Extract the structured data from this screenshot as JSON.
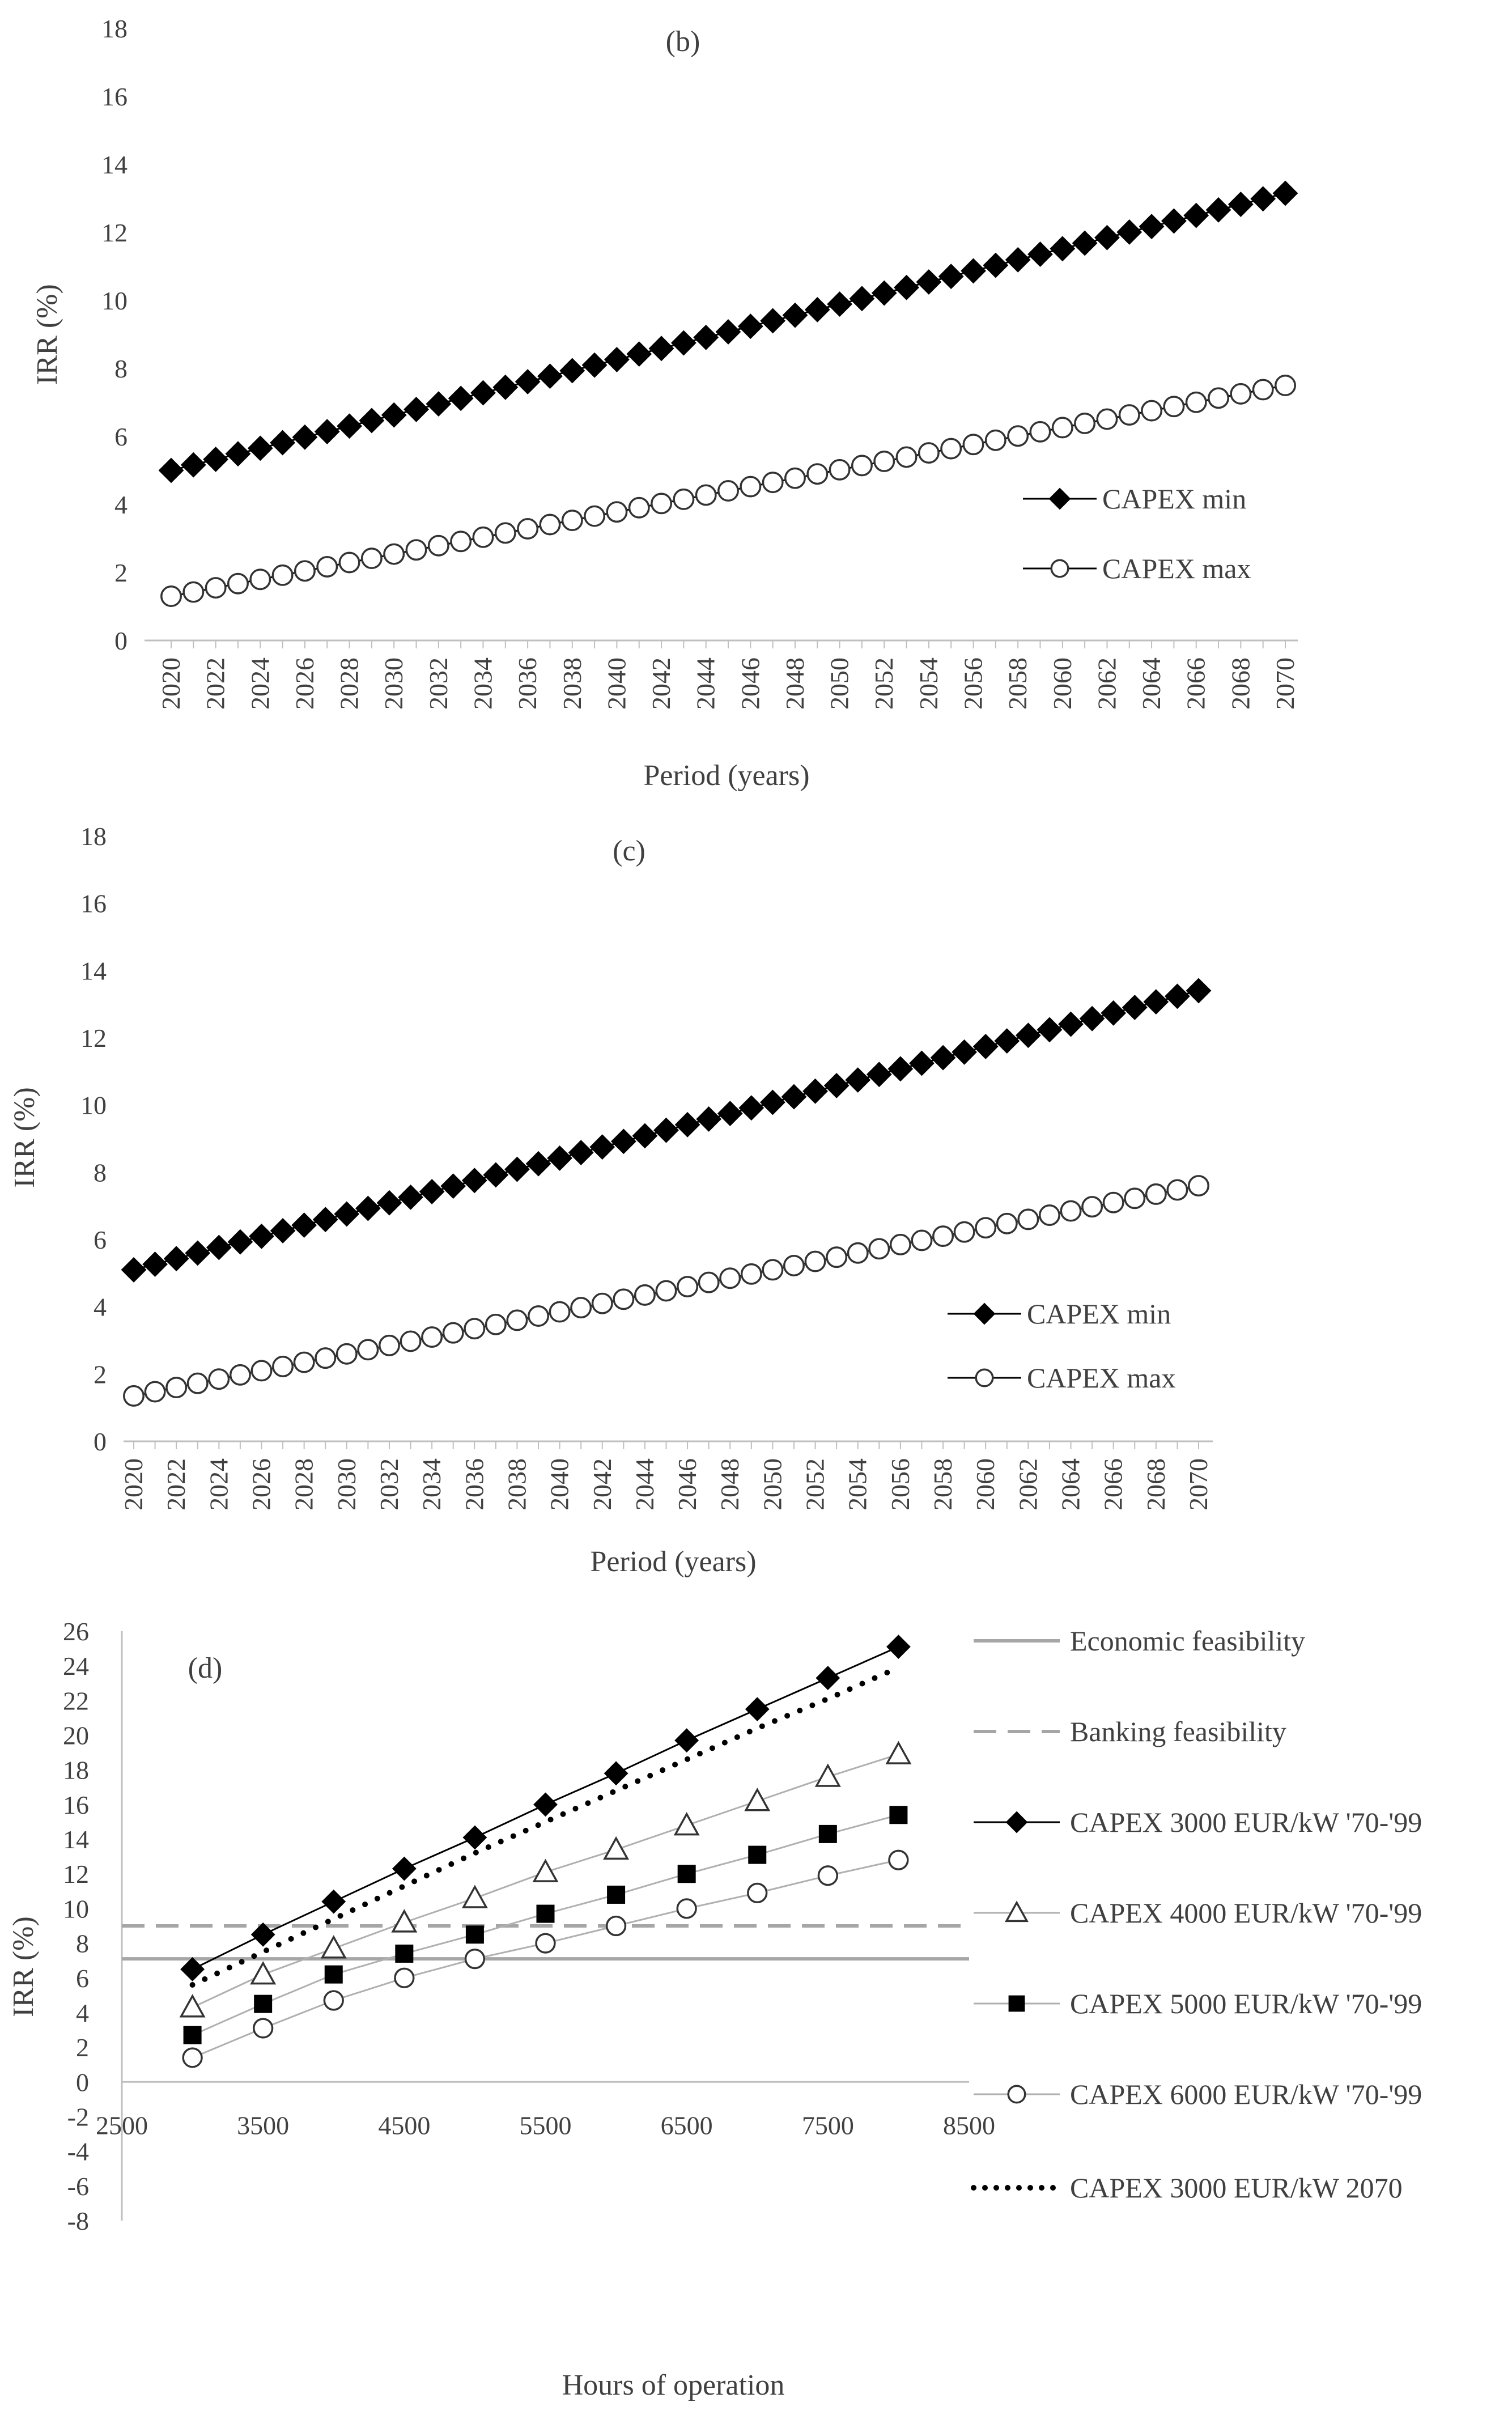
{
  "chart_data": [
    {
      "type": "line",
      "panel_label": "(b)",
      "xlabel": "Period (years)",
      "ylabel": "IRR (%)",
      "ylim": [
        0,
        18
      ],
      "yticks": [
        "0",
        "2",
        "4",
        "6",
        "8",
        "10",
        "12",
        "14",
        "16",
        "18"
      ],
      "x_start": 2020,
      "x_end": 2070,
      "xtick_labels": [
        "2020",
        "2022",
        "2024",
        "2026",
        "2028",
        "2030",
        "2032",
        "2034",
        "2036",
        "2038",
        "2040",
        "2042",
        "2044",
        "2046",
        "2048",
        "2050",
        "2052",
        "2054",
        "2056",
        "2058",
        "2060",
        "2062",
        "2064",
        "2066",
        "2068",
        "2070"
      ],
      "legend_position": "bottom-right",
      "series": [
        {
          "name": "CAPEX min",
          "marker": "diamond",
          "start": 5.0,
          "end": 13.15
        },
        {
          "name": "CAPEX max",
          "marker": "circle-open",
          "start": 1.3,
          "end": 7.5
        }
      ]
    },
    {
      "type": "line",
      "panel_label": "(c)",
      "xlabel": "Period (years)",
      "ylabel": "IRR (%)",
      "ylim": [
        0,
        18
      ],
      "yticks": [
        "0",
        "2",
        "4",
        "6",
        "8",
        "10",
        "12",
        "14",
        "16",
        "18"
      ],
      "x_start": 2020,
      "x_end": 2070,
      "xtick_labels": [
        "2020",
        "2022",
        "2024",
        "2026",
        "2028",
        "2030",
        "2032",
        "2034",
        "2036",
        "2038",
        "2040",
        "2042",
        "2044",
        "2046",
        "2048",
        "2050",
        "2052",
        "2054",
        "2056",
        "2058",
        "2060",
        "2062",
        "2064",
        "2066",
        "2068",
        "2070"
      ],
      "legend_position": "bottom-right",
      "series": [
        {
          "name": "CAPEX min",
          "marker": "diamond",
          "start": 5.1,
          "end": 13.4
        },
        {
          "name": "CAPEX max",
          "marker": "circle-open",
          "start": 1.35,
          "end": 7.6
        }
      ]
    },
    {
      "type": "line",
      "panel_label": "(d)",
      "xlabel": "Hours of operation",
      "ylabel": "IRR (%)",
      "xlim": [
        2500,
        8500
      ],
      "ylim": [
        -8,
        26
      ],
      "yticks": [
        "-8",
        "-6",
        "-4",
        "-2",
        "0",
        "2",
        "4",
        "6",
        "8",
        "10",
        "12",
        "14",
        "16",
        "18",
        "20",
        "22",
        "24",
        "26"
      ],
      "xtick_labels": [
        "2500",
        "3500",
        "4500",
        "5500",
        "6500",
        "7500",
        "8500"
      ],
      "legend_position": "right",
      "x": [
        3000,
        3500,
        4000,
        4500,
        5000,
        5500,
        6000,
        6500,
        7000,
        7500,
        8000
      ],
      "reference_lines": [
        {
          "name": "Economic feasibility",
          "value": 7.1,
          "style": "solid"
        },
        {
          "name": "Banking feasibility",
          "value": 9.0,
          "style": "dashed"
        }
      ],
      "series": [
        {
          "name": "CAPEX 3000 EUR/kW '70-'99",
          "marker": "diamond",
          "values": [
            6.5,
            8.5,
            10.4,
            12.3,
            14.1,
            16.0,
            17.8,
            19.7,
            21.5,
            23.3,
            25.1
          ]
        },
        {
          "name": "CAPEX 4000 EUR/kW '70-'99",
          "marker": "triangle-open",
          "values": [
            4.3,
            6.2,
            7.7,
            9.2,
            10.6,
            12.1,
            13.4,
            14.8,
            16.2,
            17.6,
            18.9
          ]
        },
        {
          "name": "CAPEX 5000 EUR/kW '70-'99",
          "marker": "square",
          "values": [
            2.7,
            4.5,
            6.2,
            7.4,
            8.5,
            9.7,
            10.8,
            12.0,
            13.1,
            14.3,
            15.4
          ]
        },
        {
          "name": "CAPEX 6000 EUR/kW '70-'99",
          "marker": "circle-open",
          "values": [
            1.4,
            3.1,
            4.7,
            6.0,
            7.1,
            8.0,
            9.0,
            10.0,
            10.9,
            11.9,
            12.8
          ]
        },
        {
          "name": "CAPEX 3000 EUR/kW 2070",
          "marker": "none",
          "line": "dotted",
          "values": [
            5.6,
            7.5,
            9.4,
            11.3,
            13.2,
            15.0,
            16.8,
            18.6,
            20.4,
            22.1,
            23.9
          ]
        }
      ]
    }
  ]
}
